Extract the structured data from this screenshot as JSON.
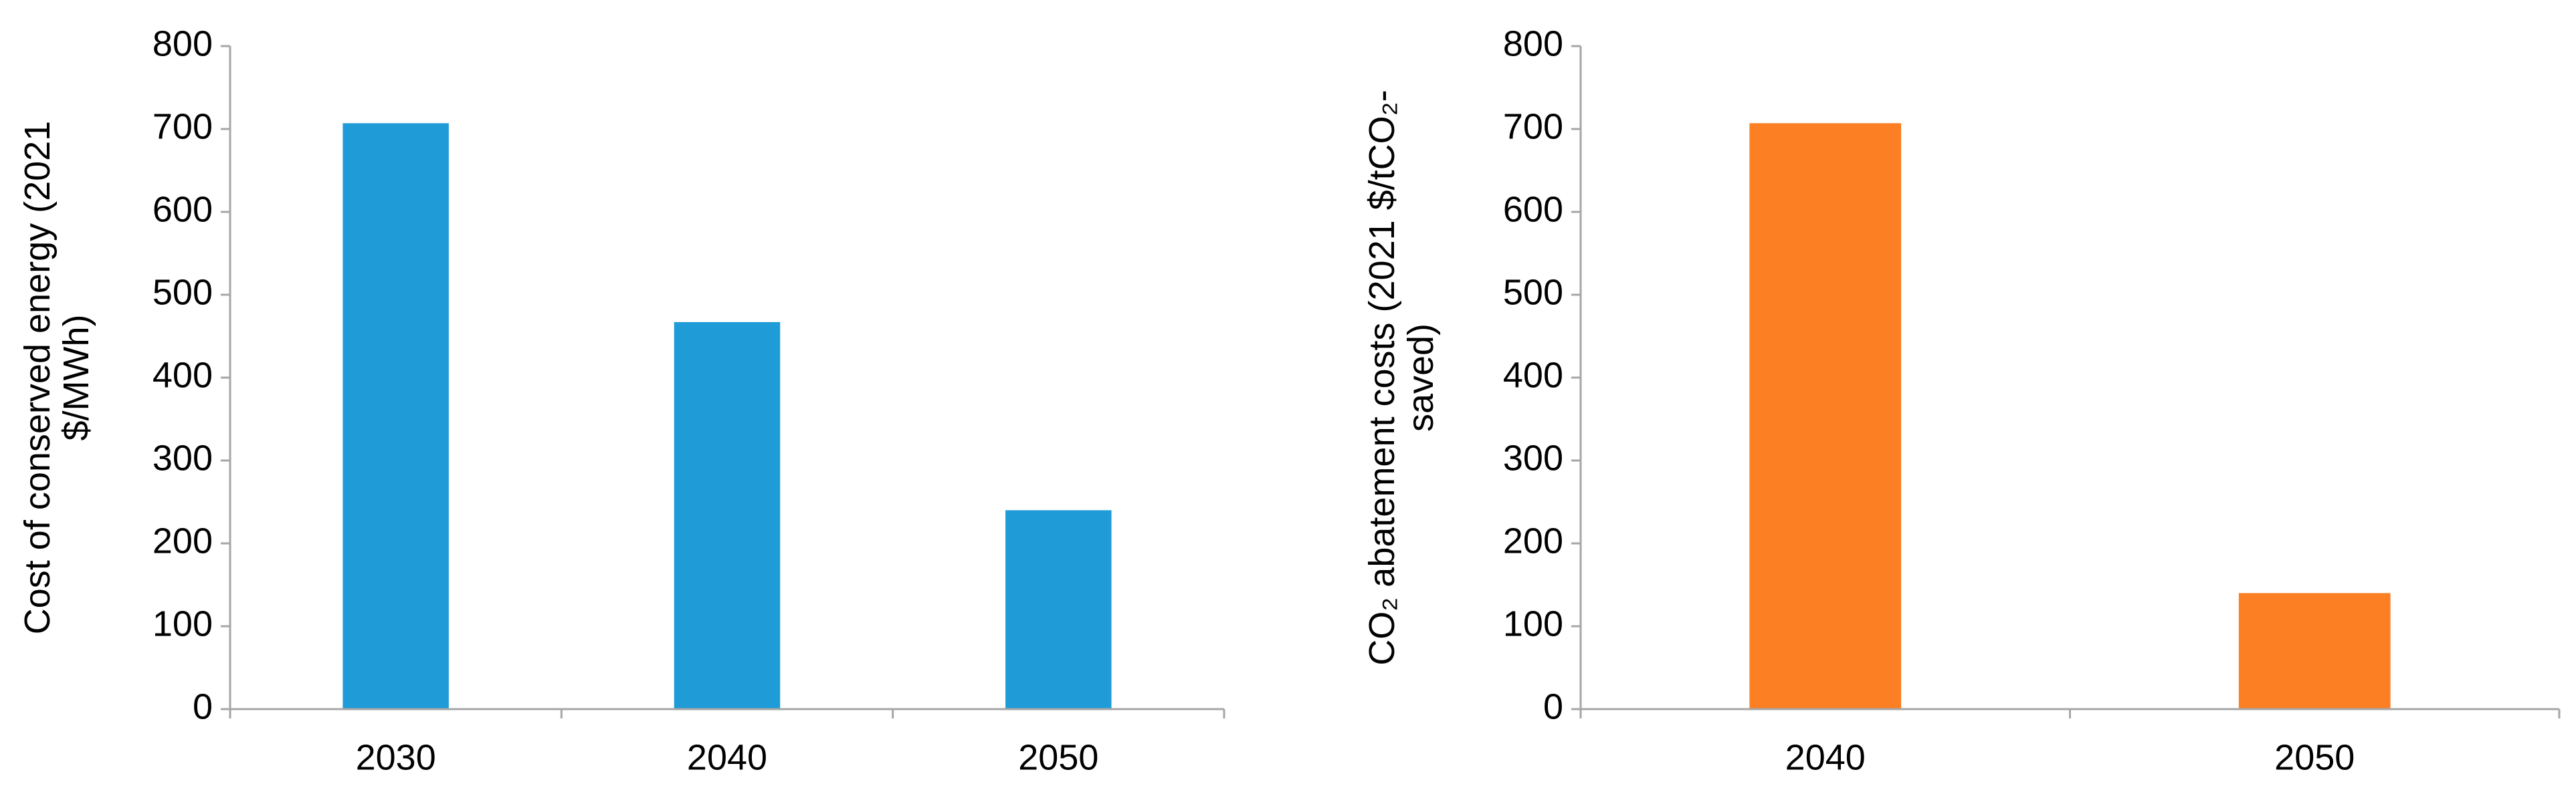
{
  "chart_data": [
    {
      "type": "bar",
      "y_label": "Cost of conserved energy (2021 $/MWh)",
      "categories": [
        "2030",
        "2040",
        "2050"
      ],
      "values": [
        707,
        467,
        240
      ],
      "color": "#1f9cd8",
      "ylim": [
        0,
        800
      ],
      "yticks": [
        0,
        100,
        200,
        300,
        400,
        500,
        600,
        700,
        800
      ]
    },
    {
      "type": "bar",
      "y_label": "CO₂ abatement costs (2021 $/tCO₂-saved)",
      "categories": [
        "2040",
        "2050"
      ],
      "values": [
        707,
        140
      ],
      "color": "#fd7f23",
      "ylim": [
        0,
        800
      ],
      "yticks": [
        0,
        100,
        200,
        300,
        400,
        500,
        600,
        700,
        800
      ]
    }
  ]
}
